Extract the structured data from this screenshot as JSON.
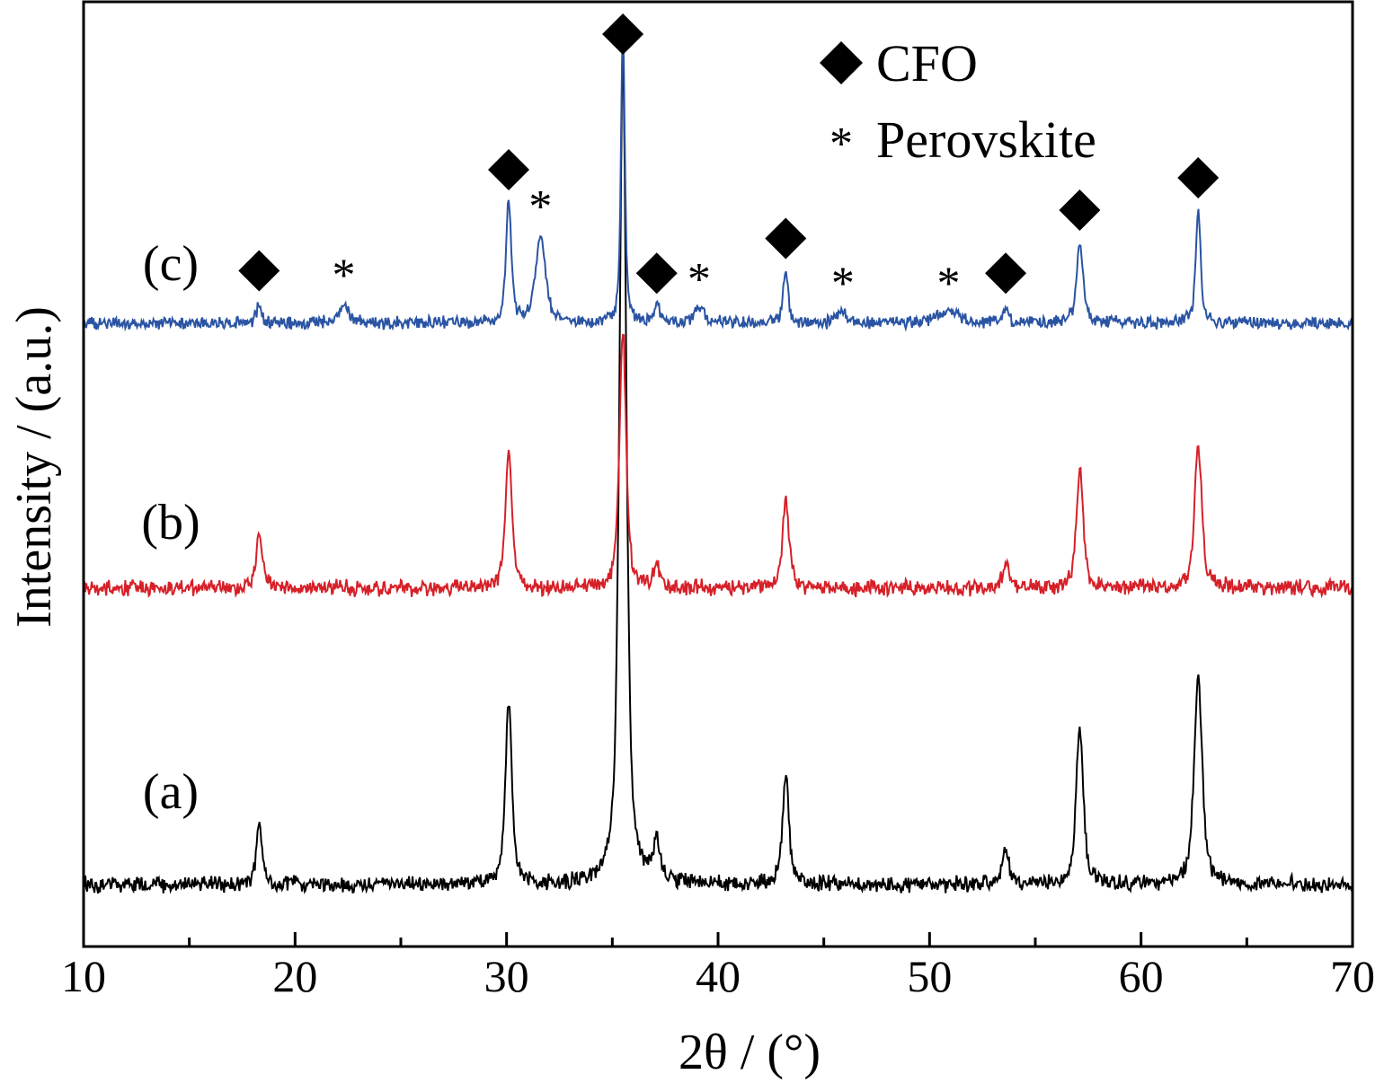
{
  "chart_data": {
    "type": "line",
    "xlabel": "2θ / (°)",
    "ylabel": "Intensity / (a.u.)",
    "xlim": [
      10,
      70
    ],
    "xticks_major": [
      10,
      20,
      30,
      40,
      50,
      60,
      70
    ],
    "xticks_minor": [
      15,
      25,
      35,
      45,
      55,
      65
    ],
    "yticks": [],
    "grid": false,
    "legend_position": "top-right",
    "legend": [
      {
        "marker": "diamond",
        "label": "CFO"
      },
      {
        "marker": "asterisk",
        "label": "Perovskite"
      }
    ],
    "series": [
      {
        "label": "(a)",
        "color": "#000000",
        "baseline": 10,
        "peaks": [
          {
            "x": 18.3,
            "h": 7,
            "w": 0.18
          },
          {
            "x": 30.1,
            "h": 22,
            "w": 0.2
          },
          {
            "x": 35.5,
            "h": 100,
            "w": 0.22
          },
          {
            "x": 37.1,
            "h": 5,
            "w": 0.2
          },
          {
            "x": 43.2,
            "h": 13,
            "w": 0.2
          },
          {
            "x": 53.6,
            "h": 4,
            "w": 0.2
          },
          {
            "x": 57.1,
            "h": 19,
            "w": 0.22
          },
          {
            "x": 62.7,
            "h": 25,
            "w": 0.25
          }
        ]
      },
      {
        "label": "(b)",
        "color": "#d62028",
        "baseline": 10,
        "peaks": [
          {
            "x": 18.3,
            "h": 7,
            "w": 0.18
          },
          {
            "x": 30.1,
            "h": 17,
            "w": 0.2
          },
          {
            "x": 35.5,
            "h": 32,
            "w": 0.2
          },
          {
            "x": 37.1,
            "h": 3,
            "w": 0.18
          },
          {
            "x": 43.2,
            "h": 11,
            "w": 0.2
          },
          {
            "x": 53.6,
            "h": 3,
            "w": 0.2
          },
          {
            "x": 57.1,
            "h": 15,
            "w": 0.2
          },
          {
            "x": 62.7,
            "h": 18,
            "w": 0.22
          }
        ]
      },
      {
        "label": "(c)",
        "color": "#2a54a3",
        "baseline": 10,
        "peaks": [
          {
            "x": 18.3,
            "h": 2.5,
            "w": 0.15
          },
          {
            "x": 22.3,
            "h": 2.5,
            "w": 0.3
          },
          {
            "x": 30.1,
            "h": 15,
            "w": 0.16
          },
          {
            "x": 31.6,
            "h": 11,
            "w": 0.3
          },
          {
            "x": 35.5,
            "h": 36,
            "w": 0.12
          },
          {
            "x": 37.1,
            "h": 2.2,
            "w": 0.15
          },
          {
            "x": 39.1,
            "h": 2,
            "w": 0.3
          },
          {
            "x": 43.2,
            "h": 6.5,
            "w": 0.15
          },
          {
            "x": 45.9,
            "h": 1.5,
            "w": 0.3
          },
          {
            "x": 50.9,
            "h": 1.5,
            "w": 0.6
          },
          {
            "x": 53.6,
            "h": 2.2,
            "w": 0.15
          },
          {
            "x": 57.1,
            "h": 10,
            "w": 0.2
          },
          {
            "x": 62.7,
            "h": 14,
            "w": 0.15
          }
        ]
      }
    ],
    "annotations": [
      {
        "series": "(c)",
        "marker": "diamond",
        "x": 18.3
      },
      {
        "series": "(c)",
        "marker": "asterisk",
        "x": 22.3
      },
      {
        "series": "(c)",
        "marker": "diamond",
        "x": 30.1
      },
      {
        "series": "(c)",
        "marker": "asterisk",
        "x": 31.6
      },
      {
        "series": "(c)",
        "marker": "diamond",
        "x": 35.5
      },
      {
        "series": "(c)",
        "marker": "diamond",
        "x": 37.1
      },
      {
        "series": "(c)",
        "marker": "asterisk",
        "x": 39.1
      },
      {
        "series": "(c)",
        "marker": "diamond",
        "x": 43.2
      },
      {
        "series": "(c)",
        "marker": "asterisk",
        "x": 45.9
      },
      {
        "series": "(c)",
        "marker": "asterisk",
        "x": 50.9
      },
      {
        "series": "(c)",
        "marker": "diamond",
        "x": 53.6
      },
      {
        "series": "(c)",
        "marker": "diamond",
        "x": 57.1
      },
      {
        "series": "(c)",
        "marker": "diamond",
        "x": 62.7
      }
    ]
  }
}
